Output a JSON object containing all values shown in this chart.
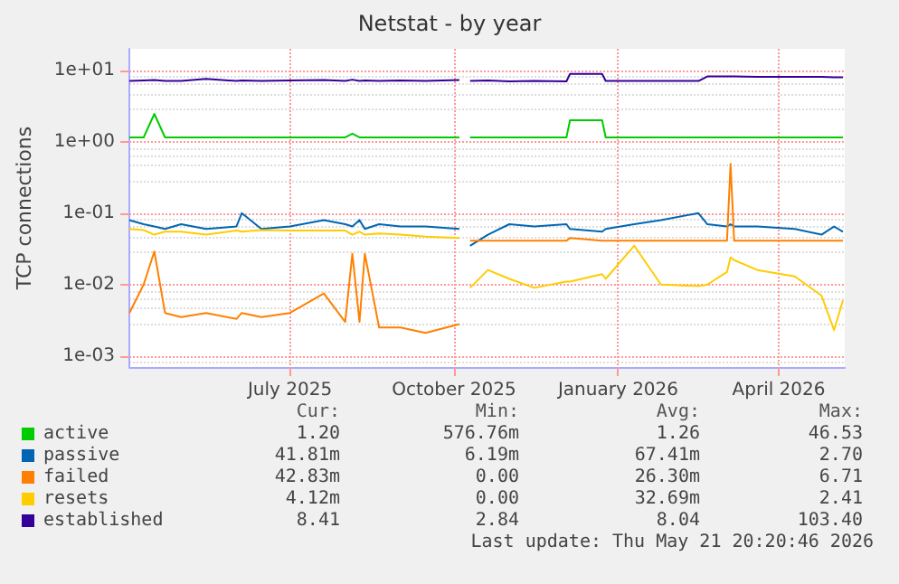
{
  "chart_data": {
    "type": "line",
    "title": "Netstat - by year",
    "ylabel": "TCP connections",
    "x": [
      "2025-04-02",
      "2025-04-10",
      "2025-04-16",
      "2025-04-22",
      "2025-05-01",
      "2025-05-15",
      "2025-06-01",
      "2025-06-04",
      "2025-06-15",
      "2025-07-01",
      "2025-07-20",
      "2025-08-01",
      "2025-08-05",
      "2025-08-09",
      "2025-08-12",
      "2025-08-20",
      "2025-09-01",
      "2025-09-15",
      "2025-10-04",
      "2025-10-06",
      "2025-10-10",
      "2025-10-20",
      "2025-11-01",
      "2025-11-15",
      "2025-12-03",
      "2025-12-05",
      "2025-12-23",
      "2025-12-25",
      "2026-01-10",
      "2026-01-25",
      "2026-02-15",
      "2026-02-20",
      "2026-03-03",
      "2026-03-05",
      "2026-03-07",
      "2026-03-20",
      "2026-04-10",
      "2026-04-25",
      "2026-05-02",
      "2026-05-07"
    ],
    "series": [
      {
        "name": "active",
        "color": "#00cc00",
        "values": [
          1.15,
          1.15,
          2.45,
          1.15,
          1.15,
          1.15,
          1.15,
          1.15,
          1.15,
          1.15,
          1.15,
          1.15,
          1.3,
          1.15,
          1.15,
          1.15,
          1.15,
          1.15,
          1.15,
          null,
          1.15,
          1.15,
          1.15,
          1.15,
          1.15,
          2.0,
          2.0,
          1.15,
          1.15,
          1.15,
          1.15,
          1.15,
          1.15,
          1.15,
          1.15,
          1.15,
          1.15,
          1.15,
          1.15,
          1.15
        ]
      },
      {
        "name": "passive",
        "color": "#0066b3",
        "values": [
          0.08,
          0.07,
          0.065,
          0.06,
          0.07,
          0.06,
          0.065,
          0.1,
          0.06,
          0.065,
          0.08,
          0.07,
          0.065,
          0.08,
          0.06,
          0.07,
          0.065,
          0.065,
          0.06,
          null,
          0.035,
          0.05,
          0.07,
          0.065,
          0.07,
          0.06,
          0.055,
          0.06,
          0.07,
          0.08,
          0.1,
          0.07,
          0.065,
          0.07,
          0.065,
          0.065,
          0.06,
          0.05,
          0.065,
          0.055
        ]
      },
      {
        "name": "failed",
        "color": "#ff8000",
        "values": [
          0.004,
          0.01,
          0.029,
          0.004,
          0.0035,
          0.004,
          0.0033,
          0.004,
          0.0035,
          0.004,
          0.0075,
          0.003,
          0.027,
          0.003,
          0.027,
          0.0025,
          0.0025,
          0.0021,
          0.0028,
          null,
          0.041,
          0.041,
          0.041,
          0.041,
          0.041,
          0.045,
          0.041,
          0.041,
          0.041,
          0.041,
          0.041,
          0.041,
          0.041,
          0.49,
          0.041,
          0.041,
          0.041,
          0.041,
          0.041,
          0.041
        ]
      },
      {
        "name": "resets",
        "color": "#ffcc00",
        "values": [
          0.06,
          0.058,
          0.05,
          0.055,
          0.055,
          0.05,
          0.057,
          0.055,
          0.058,
          0.057,
          0.057,
          0.057,
          0.05,
          0.055,
          0.05,
          0.052,
          0.05,
          0.047,
          0.045,
          null,
          0.009,
          0.016,
          0.012,
          0.009,
          0.011,
          0.011,
          0.014,
          0.012,
          0.035,
          0.01,
          0.0095,
          0.01,
          0.015,
          0.024,
          0.022,
          0.016,
          0.013,
          0.007,
          0.0023,
          0.006
        ]
      },
      {
        "name": "established",
        "color": "#330099",
        "values": [
          7.1,
          7.2,
          7.3,
          7.1,
          7.1,
          7.6,
          7.1,
          7.2,
          7.1,
          7.2,
          7.3,
          7.1,
          7.4,
          7.1,
          7.2,
          7.1,
          7.2,
          7.1,
          7.3,
          null,
          7.1,
          7.2,
          7.0,
          7.1,
          7.0,
          8.9,
          8.9,
          7.1,
          7.1,
          7.1,
          7.1,
          8.2,
          8.2,
          8.2,
          8.2,
          8.1,
          8.1,
          8.1,
          8.0,
          8.0
        ]
      }
    ],
    "xlim": [
      "2025-04-02",
      "2026-05-08"
    ],
    "xticks": [
      {
        "value": "2025-07-01",
        "label": "July 2025"
      },
      {
        "value": "2025-10-01",
        "label": "October 2025"
      },
      {
        "value": "2026-01-01",
        "label": "January 2026"
      },
      {
        "value": "2026-04-01",
        "label": "April 2026"
      }
    ],
    "ylim": [
      0.0007,
      20
    ],
    "yticks": [
      {
        "value": 0.001,
        "label": "1e-03"
      },
      {
        "value": 0.01,
        "label": "1e-02"
      },
      {
        "value": 0.1,
        "label": "1e-01"
      },
      {
        "value": 1,
        "label": "1e+00"
      },
      {
        "value": 10,
        "label": "1e+01"
      }
    ],
    "log": true,
    "grid": true,
    "legend": "bottom left",
    "marker": "none",
    "line_style": "solid",
    "annotations": [
      "Cur:",
      "Min:",
      "Avg:",
      "Max:",
      "1.20",
      "576.76m",
      "1.26",
      "46.53",
      "41.81m",
      "6.19m",
      "67.41m",
      "2.70",
      "42.83m",
      "0.00",
      "26.30m",
      "6.71",
      "4.12m",
      "0.00",
      "32.69m",
      "2.41",
      "8.41",
      "2.84",
      "8.04",
      "103.40",
      "Last update: Thu May 21 20:20:46 2026"
    ]
  }
}
